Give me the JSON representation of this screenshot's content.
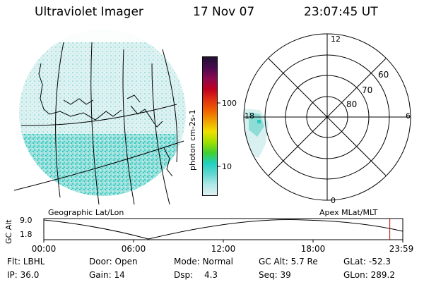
{
  "header": {
    "title": "Ultraviolet Imager",
    "date": "17 Nov 07",
    "time": "23:07:45 UT"
  },
  "colorbar": {
    "label": "photon cm-2s-1",
    "ticks": [
      "100",
      "10"
    ],
    "colors": [
      "#201030",
      "#4b0a50",
      "#8a0a50",
      "#c00020",
      "#e03010",
      "#f06000",
      "#f0a000",
      "#f0e000",
      "#a0e000",
      "#40d030",
      "#20d0c0",
      "#60d8d0",
      "#b0e8e8",
      "#e0f0f0"
    ]
  },
  "geo_panel": {
    "label": "Geographic Lat/Lon"
  },
  "polar_panel": {
    "label": "Apex MLat/MLT",
    "mlt_labels": [
      "12",
      "18",
      "6",
      "0"
    ],
    "lat_labels": [
      "60",
      "70",
      "80"
    ]
  },
  "timeline": {
    "ylabel": "GC Alt",
    "yticks": [
      "9.0",
      "1.8"
    ],
    "xticks": [
      "00:00",
      "06:00",
      "12:00",
      "18:00",
      "23:59"
    ],
    "current_time": "23:07"
  },
  "status": {
    "filter_label": "Flt:",
    "filter_value": "LBHL",
    "ip_label": "IP:",
    "ip_value": "36.0",
    "door_label": "Door:",
    "door_value": "Open",
    "gain_label": "Gain:",
    "gain_value": "14",
    "mode_label": "Mode:",
    "mode_value": "Normal",
    "dsp_label": "Dsp:",
    "dsp_value": "4.3",
    "gcalt_label": "GC Alt:",
    "gcalt_value": "5.7 Re",
    "seq_label": "Seq:",
    "seq_value": "39",
    "glat_label": "GLat:",
    "glat_value": "-52.3",
    "glon_label": "GLon:",
    "glon_value": "289.2"
  }
}
